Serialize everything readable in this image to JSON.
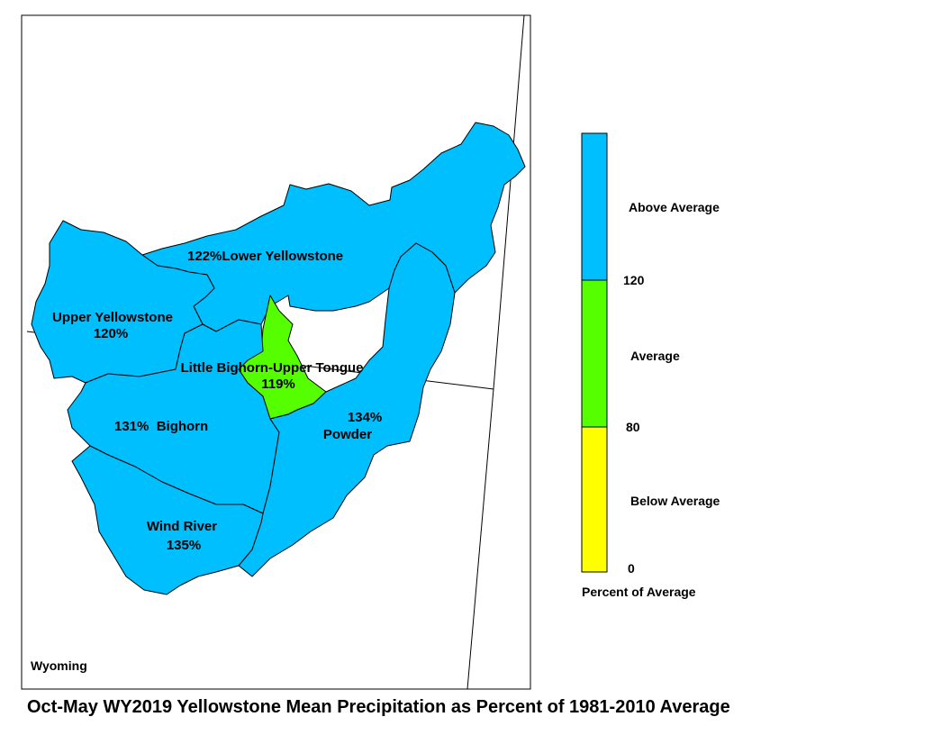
{
  "title": "Oct-May WY2019 Yellowstone Mean Precipitation as Percent of 1981-2010 Average",
  "state_label": "Wyoming",
  "colors": {
    "above": "#00BFFF",
    "average": "#55FF00",
    "below": "#FFFF00",
    "border": "#000000"
  },
  "basins": [
    {
      "name": "Lower Yellowstone",
      "label": "122%Lower Yellowstone",
      "percent": 122,
      "class": "above"
    },
    {
      "name": "Upper Yellowstone",
      "label": "Upper Yellowstone",
      "percent_label": "120%",
      "percent": 120,
      "class": "above"
    },
    {
      "name": "Little Bighorn-Upper Tongue",
      "label": "Little Bighorn-Upper Tongue",
      "percent_label": "119%",
      "percent": 119,
      "class": "average"
    },
    {
      "name": "Bighorn",
      "label": "131%  Bighorn",
      "percent": 131,
      "class": "above"
    },
    {
      "name": "Powder",
      "label": "Powder",
      "percent_label": "134%",
      "percent": 134,
      "class": "above"
    },
    {
      "name": "Wind River",
      "label": "Wind River",
      "percent_label": "135%",
      "percent": 135,
      "class": "above"
    }
  ],
  "legend": {
    "title": "Percent of Average",
    "classes": [
      {
        "label": "Above Average",
        "color": "#00BFFF"
      },
      {
        "label": "Average",
        "color": "#55FF00"
      },
      {
        "label": "Below Average",
        "color": "#FFFF00"
      }
    ],
    "breaks": [
      "120",
      "80",
      "0"
    ]
  }
}
